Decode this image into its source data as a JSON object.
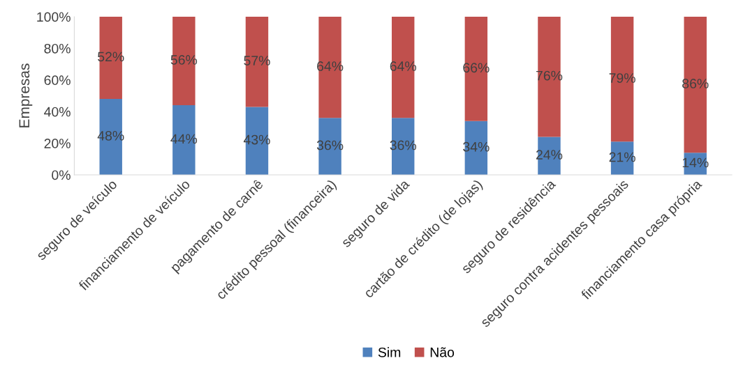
{
  "chart_data": {
    "type": "bar",
    "stacked": true,
    "ylabel": "Empresas",
    "categories": [
      "seguro de veículo",
      "financiamento de veículo",
      "pagamento de carnê",
      "crédito pessoal (financeira)",
      "seguro de vida",
      "cartão de crédito (de lojas)",
      "seguro de residência",
      "seguro contra acidentes pessoais",
      "financiamento casa própria"
    ],
    "series": [
      {
        "name": "Sim",
        "color": "#4f81bd",
        "values": [
          48,
          44,
          43,
          36,
          36,
          34,
          24,
          21,
          14
        ],
        "value_labels": [
          "48%",
          "44%",
          "43%",
          "36%",
          "36%",
          "34%",
          "24%",
          "21%",
          "14%"
        ]
      },
      {
        "name": "Não",
        "color": "#c0504d",
        "values": [
          52,
          56,
          57,
          64,
          64,
          66,
          76,
          79,
          86
        ],
        "value_labels": [
          "52%",
          "56%",
          "57%",
          "64%",
          "64%",
          "66%",
          "76%",
          "79%",
          "86%"
        ]
      }
    ],
    "ylim": [
      0,
      100
    ],
    "yticks": [
      {
        "value": 0,
        "label": "0%"
      },
      {
        "value": 20,
        "label": "20%"
      },
      {
        "value": 40,
        "label": "40%"
      },
      {
        "value": 60,
        "label": "60%"
      },
      {
        "value": 80,
        "label": "80%"
      },
      {
        "value": 100,
        "label": "100%"
      }
    ],
    "grid": false,
    "legend": "bottom"
  }
}
